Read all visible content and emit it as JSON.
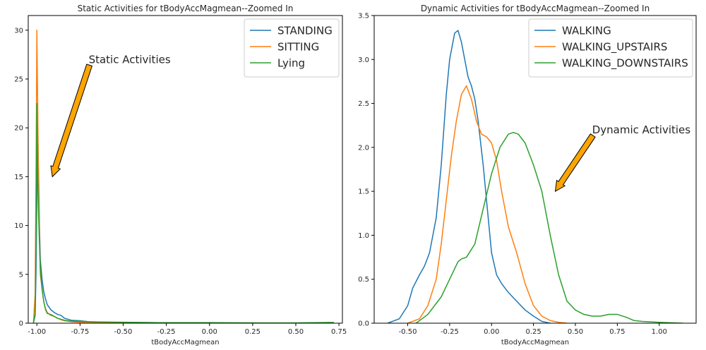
{
  "chart_data": [
    {
      "type": "line",
      "title": "Static Activities for tBodyAccMagmean--Zoomed In",
      "xlabel": "tBodyAccMagmean",
      "ylabel": "",
      "xlim": [
        -1.05,
        0.77
      ],
      "ylim": [
        0,
        31.5
      ],
      "xticks": [
        "-1.00",
        "-0.75",
        "-0.50",
        "-0.25",
        "0.00",
        "0.25",
        "0.50",
        "0.75"
      ],
      "xtick_values": [
        -1.0,
        -0.75,
        -0.5,
        -0.25,
        0.0,
        0.25,
        0.5,
        0.75
      ],
      "yticks": [
        "0",
        "5",
        "10",
        "15",
        "20",
        "25",
        "30"
      ],
      "ytick_values": [
        0,
        5,
        10,
        15,
        20,
        25,
        30
      ],
      "legend_position": "top-right",
      "annotation": {
        "text": "Static Activities",
        "text_at": [
          -0.7,
          27.0
        ],
        "arrow_to": [
          -0.91,
          15.0
        ]
      },
      "series": [
        {
          "name": "STANDING",
          "color": "#1f77b4",
          "x": [
            -1.02,
            -1.01,
            -1.005,
            -1.0,
            -0.995,
            -0.99,
            -0.985,
            -0.98,
            -0.97,
            -0.96,
            -0.95,
            -0.94,
            -0.92,
            -0.9,
            -0.88,
            -0.86,
            -0.84,
            -0.82,
            -0.8,
            -0.75,
            -0.7,
            -0.6,
            -0.5,
            -0.3,
            0.0,
            0.3,
            0.5,
            0.72
          ],
          "y": [
            0,
            0.8,
            5,
            13,
            20,
            15,
            10,
            6.5,
            4.5,
            3.2,
            2.5,
            1.9,
            1.4,
            1.1,
            0.9,
            0.8,
            0.5,
            0.4,
            0.3,
            0.25,
            0.15,
            0.1,
            0.08,
            0.05,
            0.03,
            0.02,
            0.02,
            0.05
          ]
        },
        {
          "name": "SITTING",
          "color": "#ff7f0e",
          "x": [
            -1.02,
            -1.01,
            -1.005,
            -1.0,
            -0.995,
            -0.99,
            -0.985,
            -0.98,
            -0.97,
            -0.96,
            -0.95,
            -0.94,
            -0.92,
            -0.9,
            -0.88,
            -0.86,
            -0.84,
            -0.82,
            -0.8,
            -0.75,
            -0.7,
            -0.6,
            -0.5,
            -0.3,
            0.0,
            0.3,
            0.5,
            0.72
          ],
          "y": [
            0,
            3,
            15,
            30,
            22,
            13,
            9,
            5,
            3.5,
            2.2,
            1.5,
            1.1,
            0.8,
            0.7,
            0.5,
            0.35,
            0.25,
            0.2,
            0.15,
            0.1,
            0.1,
            0.08,
            0.05,
            0.03,
            0.02,
            0.02,
            0.02,
            0.03
          ]
        },
        {
          "name": "Lying",
          "color": "#2ca02c",
          "x": [
            -1.02,
            -1.01,
            -1.005,
            -1.0,
            -0.995,
            -0.99,
            -0.985,
            -0.98,
            -0.97,
            -0.96,
            -0.95,
            -0.94,
            -0.92,
            -0.9,
            -0.88,
            -0.86,
            -0.84,
            -0.82,
            -0.8,
            -0.75,
            -0.7,
            -0.6,
            -0.5,
            -0.3,
            0.0,
            0.3,
            0.5,
            0.72
          ],
          "y": [
            0,
            1,
            8,
            22.5,
            15,
            11,
            8,
            5.5,
            3.5,
            2.2,
            1.4,
            1.0,
            0.9,
            0.7,
            0.5,
            0.4,
            0.3,
            0.25,
            0.2,
            0.2,
            0.15,
            0.12,
            0.1,
            0.05,
            0.05,
            0.03,
            0.03,
            0.08
          ]
        }
      ]
    },
    {
      "type": "line",
      "title": "Dynamic Activities for tBodyAccMagmean--Zoomed In",
      "xlabel": "tBodyAccMagmean",
      "ylabel": "",
      "xlim": [
        -0.7,
        1.22
      ],
      "ylim": [
        0,
        3.5
      ],
      "xticks": [
        "-0.50",
        "-0.25",
        "0.00",
        "0.25",
        "0.50",
        "0.75",
        "1.00"
      ],
      "xtick_values": [
        -0.5,
        -0.25,
        0.0,
        0.25,
        0.5,
        0.75,
        1.0
      ],
      "yticks": [
        "0.0",
        "0.5",
        "1.0",
        "1.5",
        "2.0",
        "2.5",
        "3.0",
        "3.5"
      ],
      "ytick_values": [
        0,
        0.5,
        1.0,
        1.5,
        2.0,
        2.5,
        3.0,
        3.5
      ],
      "legend_position": "top-right",
      "annotation": {
        "text": "Dynamic Activities",
        "text_at": [
          0.6,
          2.2
        ],
        "arrow_to": [
          0.38,
          1.5
        ]
      },
      "series": [
        {
          "name": "WALKING",
          "color": "#1f77b4",
          "x": [
            -0.62,
            -0.55,
            -0.5,
            -0.47,
            -0.43,
            -0.4,
            -0.37,
            -0.33,
            -0.3,
            -0.27,
            -0.25,
            -0.22,
            -0.2,
            -0.18,
            -0.16,
            -0.14,
            -0.12,
            -0.1,
            -0.08,
            -0.05,
            -0.02,
            0.0,
            0.03,
            0.06,
            0.1,
            0.15,
            0.2,
            0.25,
            0.3,
            0.35
          ],
          "y": [
            0,
            0.05,
            0.2,
            0.4,
            0.55,
            0.65,
            0.8,
            1.2,
            1.8,
            2.6,
            3.0,
            3.3,
            3.33,
            3.2,
            3.0,
            2.8,
            2.7,
            2.55,
            2.3,
            1.8,
            1.2,
            0.8,
            0.55,
            0.45,
            0.35,
            0.25,
            0.15,
            0.08,
            0.02,
            0
          ]
        },
        {
          "name": "WALKING_UPSTAIRS",
          "color": "#ff7f0e",
          "x": [
            -0.5,
            -0.43,
            -0.38,
            -0.33,
            -0.3,
            -0.27,
            -0.24,
            -0.21,
            -0.18,
            -0.15,
            -0.12,
            -0.09,
            -0.06,
            -0.03,
            0.0,
            0.03,
            0.06,
            0.1,
            0.15,
            0.2,
            0.25,
            0.3,
            0.35,
            0.4,
            0.45
          ],
          "y": [
            0,
            0.05,
            0.2,
            0.5,
            0.9,
            1.4,
            1.9,
            2.3,
            2.6,
            2.7,
            2.55,
            2.3,
            2.15,
            2.12,
            2.05,
            1.85,
            1.5,
            1.1,
            0.8,
            0.45,
            0.2,
            0.08,
            0.03,
            0.01,
            0
          ]
        },
        {
          "name": "WALKING_DOWNSTAIRS",
          "color": "#2ca02c",
          "x": [
            -0.45,
            -0.38,
            -0.3,
            -0.25,
            -0.2,
            -0.18,
            -0.15,
            -0.1,
            -0.05,
            0.0,
            0.05,
            0.1,
            0.13,
            0.16,
            0.2,
            0.25,
            0.3,
            0.35,
            0.4,
            0.45,
            0.5,
            0.55,
            0.6,
            0.65,
            0.7,
            0.75,
            0.8,
            0.85,
            0.9,
            1.0,
            1.14
          ],
          "y": [
            0,
            0.1,
            0.3,
            0.5,
            0.7,
            0.73,
            0.75,
            0.9,
            1.3,
            1.7,
            2.0,
            2.15,
            2.17,
            2.15,
            2.05,
            1.8,
            1.5,
            1.0,
            0.55,
            0.25,
            0.15,
            0.1,
            0.08,
            0.08,
            0.1,
            0.1,
            0.07,
            0.03,
            0.02,
            0.01,
            0
          ]
        }
      ]
    }
  ]
}
